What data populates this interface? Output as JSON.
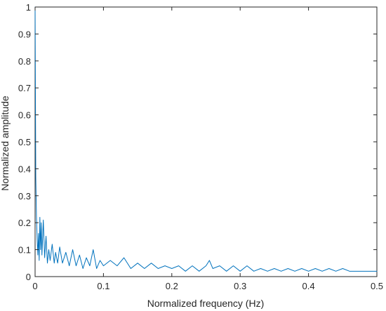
{
  "chart_data": {
    "type": "line",
    "title": "",
    "xlabel": "Normalized frequency (Hz)",
    "ylabel": "Normalized amplitude",
    "xlim": [
      0,
      0.5
    ],
    "ylim": [
      0,
      1
    ],
    "grid": false,
    "legend": "none",
    "x_ticks": [
      0,
      0.1,
      0.2,
      0.3,
      0.4,
      0.5
    ],
    "x_tick_labels": [
      "0",
      "0.1",
      "0.2",
      "0.3",
      "0.4",
      "0.5"
    ],
    "y_ticks": [
      0,
      0.1,
      0.2,
      0.3,
      0.4,
      0.5,
      0.6,
      0.7,
      0.8,
      0.9,
      1
    ],
    "y_tick_labels": [
      "0",
      "0.1",
      "0.2",
      "0.3",
      "0.4",
      "0.5",
      "0.6",
      "0.7",
      "0.8",
      "0.9",
      "1"
    ],
    "series": [
      {
        "color": "#0072BD",
        "x": [
          0,
          0.001,
          0.002,
          0.003,
          0.004,
          0.005,
          0.006,
          0.007,
          0.008,
          0.009,
          0.01,
          0.012,
          0.014,
          0.016,
          0.018,
          0.02,
          0.022,
          0.025,
          0.028,
          0.03,
          0.033,
          0.036,
          0.04,
          0.045,
          0.05,
          0.055,
          0.06,
          0.065,
          0.07,
          0.075,
          0.08,
          0.085,
          0.09,
          0.095,
          0.1,
          0.11,
          0.12,
          0.13,
          0.14,
          0.15,
          0.16,
          0.17,
          0.18,
          0.19,
          0.2,
          0.21,
          0.22,
          0.23,
          0.24,
          0.25,
          0.255,
          0.26,
          0.27,
          0.28,
          0.29,
          0.3,
          0.31,
          0.32,
          0.33,
          0.34,
          0.35,
          0.36,
          0.37,
          0.38,
          0.39,
          0.4,
          0.41,
          0.42,
          0.43,
          0.44,
          0.45,
          0.46,
          0.47,
          0.48,
          0.49,
          0.5
        ],
        "y": [
          1.0,
          0.37,
          0.22,
          0.14,
          0.08,
          0.16,
          0.06,
          0.22,
          0.1,
          0.2,
          0.08,
          0.21,
          0.07,
          0.15,
          0.05,
          0.1,
          0.06,
          0.12,
          0.05,
          0.09,
          0.05,
          0.11,
          0.05,
          0.09,
          0.04,
          0.1,
          0.04,
          0.08,
          0.03,
          0.07,
          0.04,
          0.1,
          0.03,
          0.06,
          0.04,
          0.06,
          0.04,
          0.07,
          0.03,
          0.05,
          0.03,
          0.05,
          0.03,
          0.04,
          0.03,
          0.04,
          0.02,
          0.04,
          0.02,
          0.04,
          0.06,
          0.03,
          0.04,
          0.02,
          0.04,
          0.02,
          0.04,
          0.02,
          0.03,
          0.02,
          0.03,
          0.02,
          0.03,
          0.02,
          0.03,
          0.02,
          0.03,
          0.02,
          0.03,
          0.02,
          0.03,
          0.02,
          0.02,
          0.02,
          0.02,
          0.02
        ]
      }
    ]
  }
}
